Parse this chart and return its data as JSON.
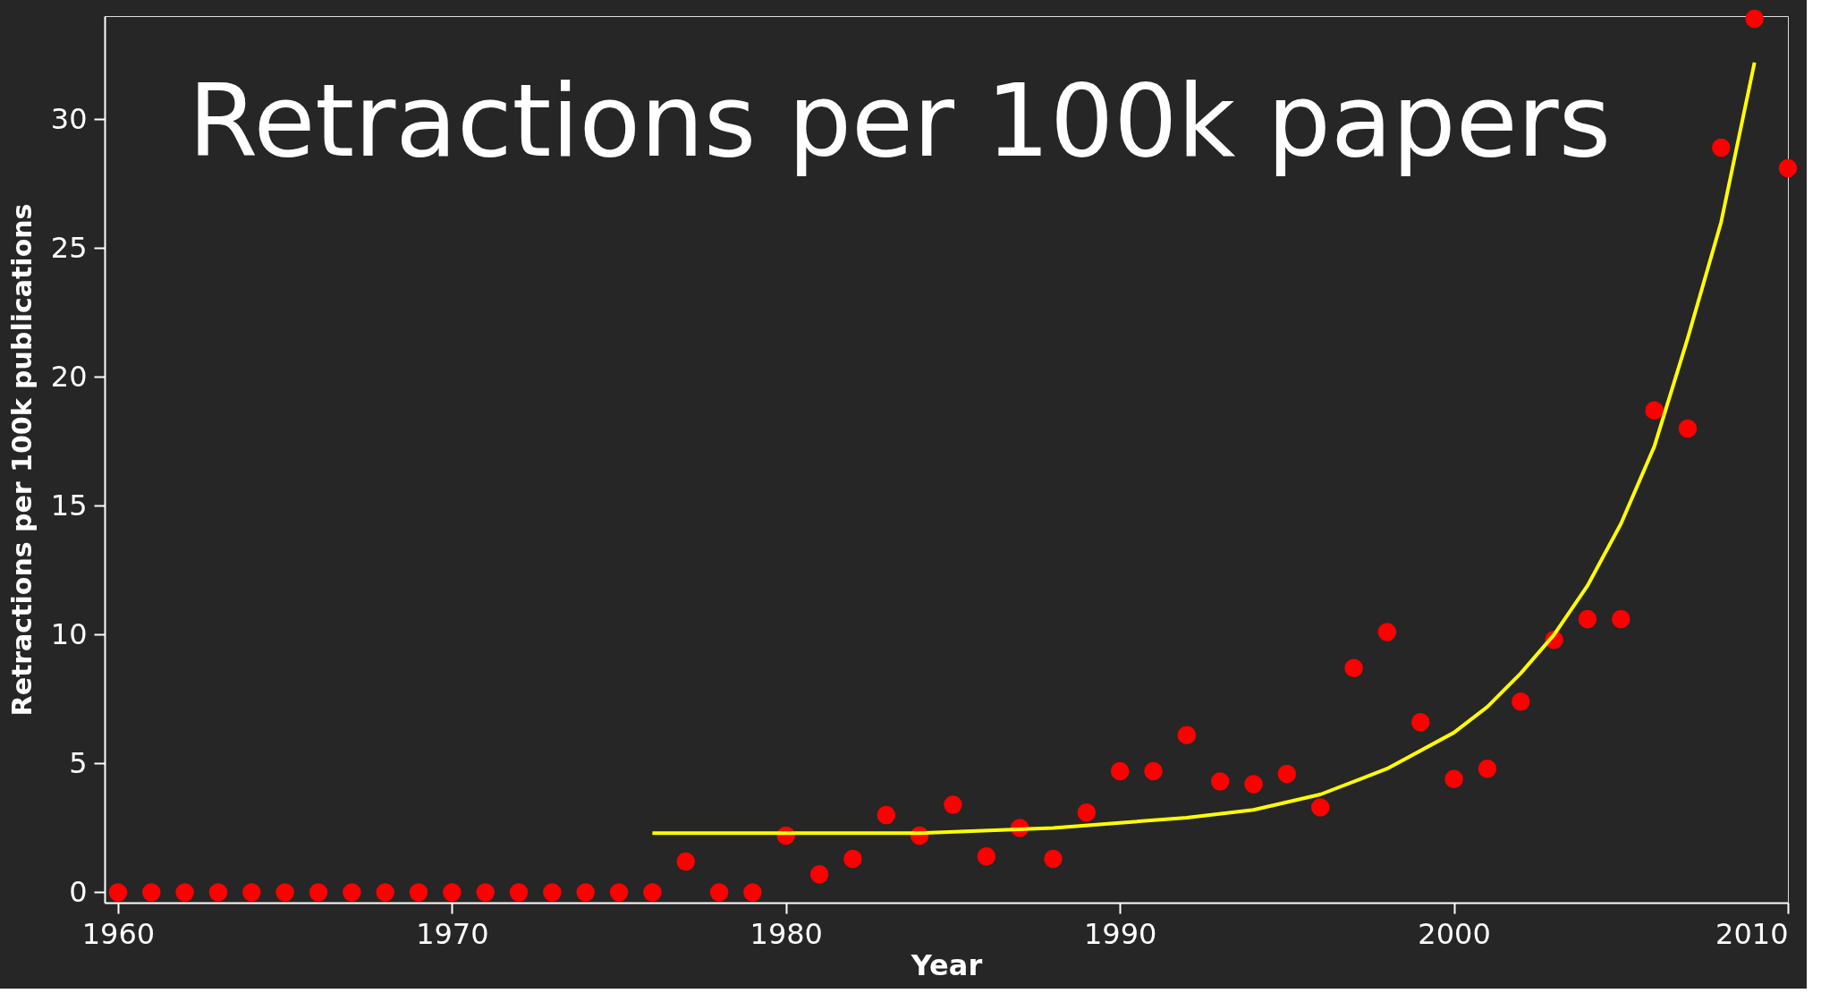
{
  "chart_data": {
    "type": "scatter",
    "title": "Retractions per 100k papers",
    "xlabel": "Year",
    "ylabel": "Retractions per 100k publications",
    "xlim": [
      1959.6,
      2010
    ],
    "xticks": [
      1960,
      1970,
      1980,
      1990,
      2000,
      2010
    ],
    "ylim": [
      -0.4,
      34
    ],
    "yticks": [
      0,
      5,
      10,
      15,
      20,
      25,
      30
    ],
    "grid": false,
    "series": [
      {
        "marker": "circle",
        "color": "#ff0000",
        "x": [
          1960,
          1961,
          1962,
          1963,
          1964,
          1965,
          1966,
          1967,
          1968,
          1969,
          1970,
          1971,
          1972,
          1973,
          1974,
          1975,
          1976,
          1977,
          1978,
          1979,
          1980,
          1981,
          1982,
          1983,
          1984,
          1985,
          1986,
          1987,
          1988,
          1989,
          1990,
          1991,
          1992,
          1993,
          1994,
          1995,
          1996,
          1997,
          1998,
          1999,
          2000,
          2001,
          2002,
          2003,
          2004,
          2005,
          2006,
          2007,
          2008,
          2009,
          2010
        ],
        "values": [
          0,
          0,
          0,
          0,
          0,
          0,
          0,
          0,
          0,
          0,
          0,
          0,
          0,
          0,
          0,
          0,
          0,
          1.2,
          0,
          0,
          2.2,
          0.7,
          1.3,
          3.0,
          2.2,
          3.4,
          1.4,
          2.5,
          1.3,
          3.1,
          4.7,
          4.7,
          6.1,
          4.3,
          4.2,
          4.6,
          3.3,
          8.7,
          10.1,
          6.6,
          4.4,
          4.8,
          7.4,
          9.8,
          10.6,
          10.6,
          18.7,
          18.0,
          28.9,
          33.9,
          28.1
        ]
      },
      {
        "type": "line",
        "marker": "none",
        "color": "#ffff00",
        "x": [
          1976,
          1980,
          1984,
          1988,
          1990,
          1992,
          1994,
          1996,
          1998,
          2000,
          2001,
          2002,
          2003,
          2004,
          2005,
          2006,
          2007,
          2008,
          2009
        ],
        "values": [
          2.3,
          2.3,
          2.3,
          2.5,
          2.7,
          2.9,
          3.2,
          3.8,
          4.8,
          6.2,
          7.2,
          8.5,
          10.0,
          11.9,
          14.3,
          17.3,
          21.5,
          26.0,
          32.2
        ]
      }
    ]
  }
}
